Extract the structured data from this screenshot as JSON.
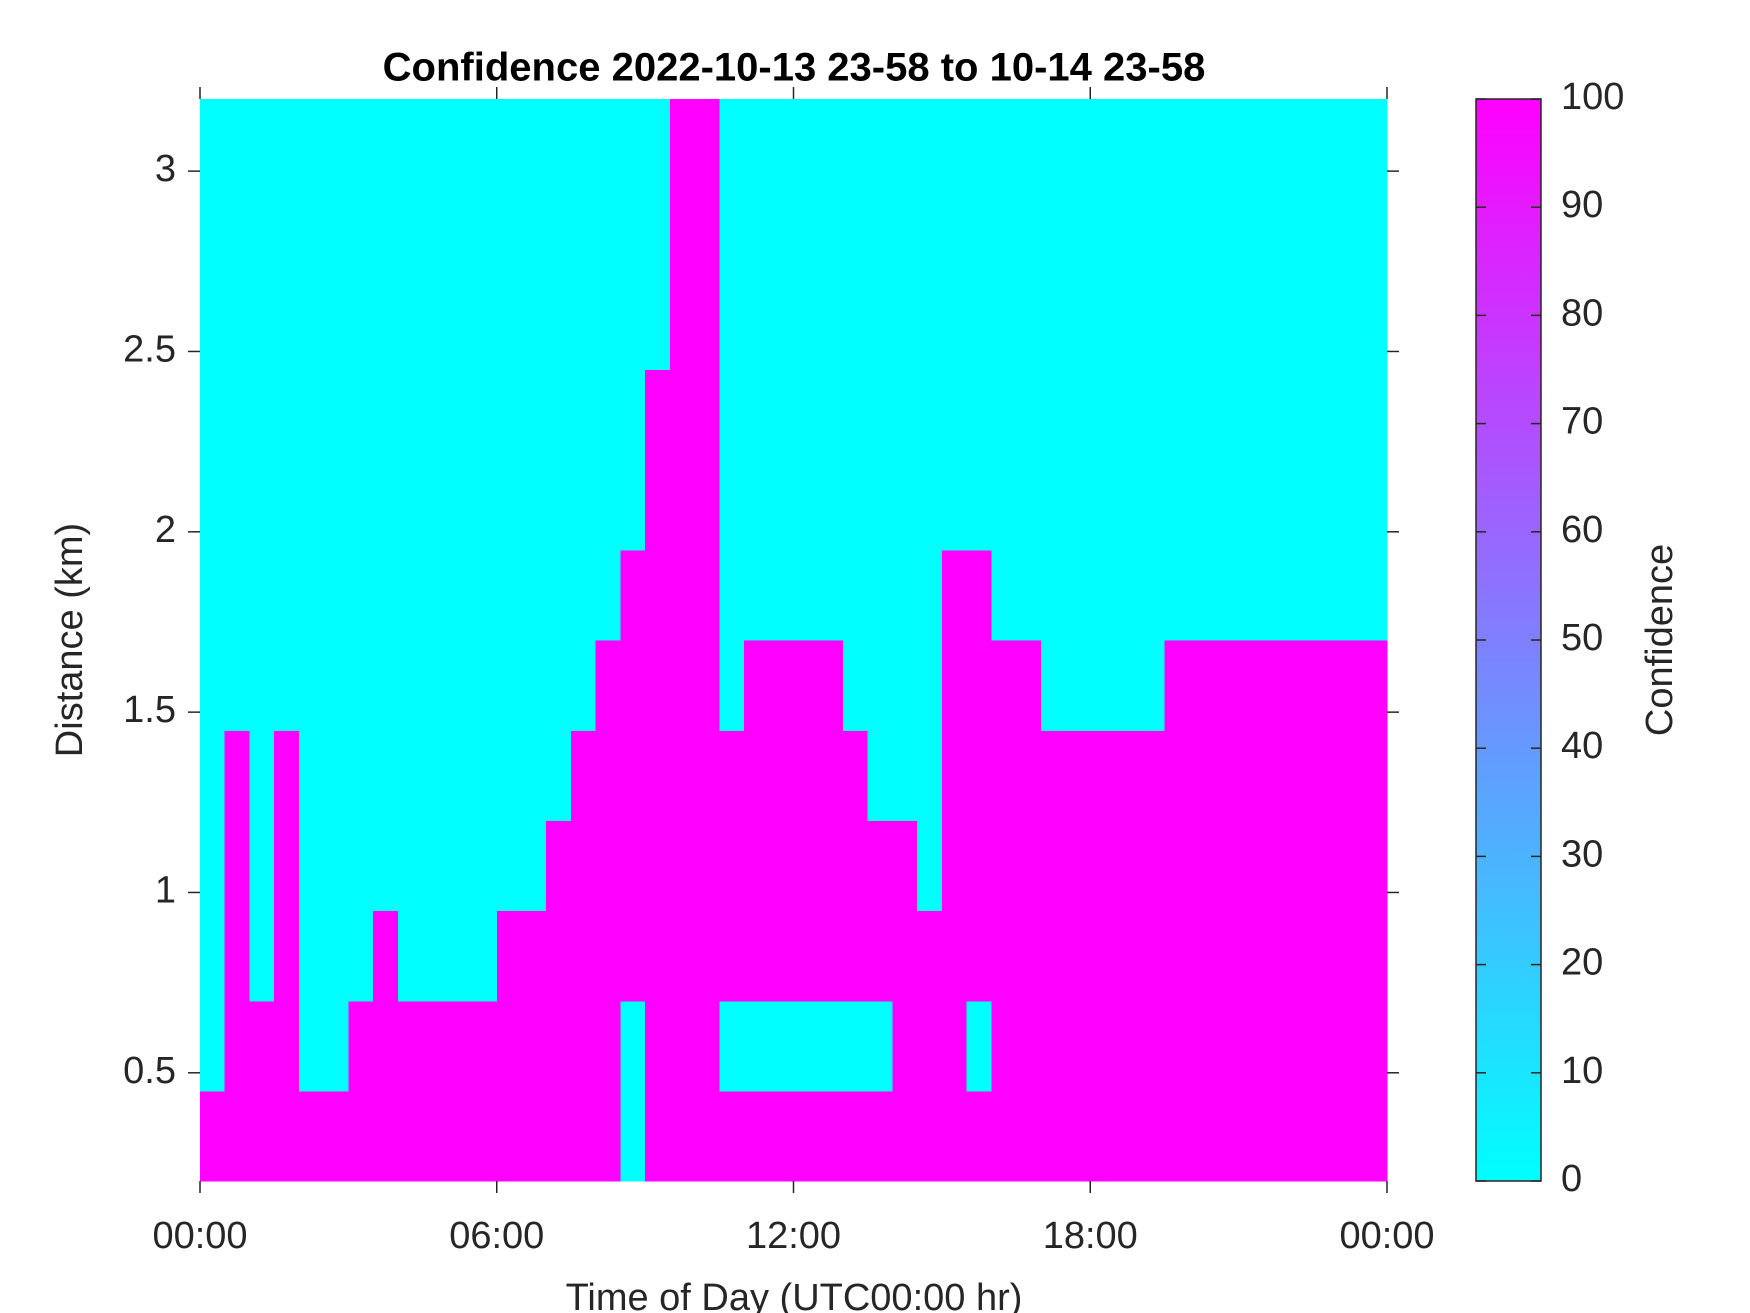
{
  "chart_data": {
    "type": "heatmap",
    "title": "Confidence 2022-10-13 23-58 to 10-14 23-58",
    "x_label": "Time of Day (UTC00:00 hr)",
    "y_label": "Distance (km)",
    "colorbar_label": "Confidence",
    "xlim": [
      0,
      24
    ],
    "xticks": [
      {
        "value": 0,
        "label": "00:00"
      },
      {
        "value": 6,
        "label": "06:00"
      },
      {
        "value": 12,
        "label": "12:00"
      },
      {
        "value": 18,
        "label": "18:00"
      },
      {
        "value": 24,
        "label": "00:00"
      }
    ],
    "ylim": [
      0.2,
      3.2
    ],
    "yticks": [
      0.5,
      1,
      1.5,
      2,
      2.5,
      3
    ],
    "clim": [
      0,
      100
    ],
    "cticks": [
      0,
      10,
      20,
      30,
      40,
      50,
      60,
      70,
      80,
      90,
      100
    ],
    "colormap": [
      "#00ffff",
      "#ff00ff"
    ],
    "xbins": [
      0,
      0.5,
      1,
      1.5,
      2,
      2.5,
      3,
      3.5,
      4,
      4.5,
      5,
      5.5,
      6,
      6.5,
      7,
      7.5,
      8,
      8.5,
      9,
      9.5,
      10,
      10.5,
      11,
      11.5,
      12,
      12.5,
      13,
      13.5,
      14,
      14.5,
      15,
      15.5,
      16,
      16.5,
      17,
      17.5,
      18,
      18.5,
      19,
      19.5,
      20,
      20.5,
      21,
      21.5,
      22,
      22.5,
      23,
      23.5,
      24
    ],
    "ybins": [
      0.2,
      0.45,
      0.7,
      0.95,
      1.2,
      1.45,
      1.7,
      1.95,
      2.2,
      2.45,
      2.7,
      2.95,
      3.2
    ],
    "z": [
      [
        100,
        100,
        100,
        100,
        100,
        100,
        100,
        100,
        100,
        100,
        100,
        100,
        100,
        100,
        100,
        100,
        100,
        0,
        100,
        100,
        100,
        100,
        100,
        100,
        100,
        100,
        100,
        100,
        100,
        100,
        100,
        100,
        100,
        100,
        100,
        100,
        100,
        100,
        100,
        100,
        100,
        100,
        100,
        100,
        100,
        100,
        100,
        100
      ],
      [
        0,
        100,
        100,
        100,
        0,
        0,
        100,
        100,
        100,
        100,
        100,
        100,
        100,
        100,
        100,
        100,
        100,
        0,
        100,
        100,
        100,
        0,
        0,
        0,
        0,
        0,
        0,
        0,
        100,
        100,
        100,
        0,
        100,
        100,
        100,
        100,
        100,
        100,
        100,
        100,
        100,
        100,
        100,
        100,
        100,
        100,
        100,
        100
      ],
      [
        0,
        100,
        0,
        100,
        0,
        0,
        0,
        100,
        0,
        0,
        0,
        0,
        100,
        100,
        100,
        100,
        100,
        100,
        100,
        100,
        100,
        100,
        100,
        100,
        100,
        100,
        100,
        100,
        100,
        100,
        100,
        100,
        100,
        100,
        100,
        100,
        100,
        100,
        100,
        100,
        100,
        100,
        100,
        100,
        100,
        100,
        100,
        100
      ],
      [
        0,
        100,
        0,
        100,
        0,
        0,
        0,
        0,
        0,
        0,
        0,
        0,
        0,
        0,
        100,
        100,
        100,
        100,
        100,
        100,
        100,
        100,
        100,
        100,
        100,
        100,
        100,
        100,
        100,
        0,
        100,
        100,
        100,
        100,
        100,
        100,
        100,
        100,
        100,
        100,
        100,
        100,
        100,
        100,
        100,
        100,
        100,
        100
      ],
      [
        0,
        100,
        0,
        100,
        0,
        0,
        0,
        0,
        0,
        0,
        0,
        0,
        0,
        0,
        0,
        100,
        100,
        100,
        100,
        100,
        100,
        100,
        100,
        100,
        100,
        100,
        100,
        0,
        0,
        0,
        100,
        100,
        100,
        100,
        100,
        100,
        100,
        100,
        100,
        100,
        100,
        100,
        100,
        100,
        100,
        100,
        100,
        100
      ],
      [
        0,
        0,
        0,
        0,
        0,
        0,
        0,
        0,
        0,
        0,
        0,
        0,
        0,
        0,
        0,
        0,
        100,
        100,
        100,
        100,
        100,
        0,
        100,
        100,
        100,
        100,
        0,
        0,
        0,
        0,
        100,
        100,
        100,
        100,
        0,
        0,
        0,
        0,
        0,
        100,
        100,
        100,
        100,
        100,
        100,
        100,
        100,
        100
      ],
      [
        0,
        0,
        0,
        0,
        0,
        0,
        0,
        0,
        0,
        0,
        0,
        0,
        0,
        0,
        0,
        0,
        0,
        100,
        100,
        100,
        100,
        0,
        0,
        0,
        0,
        0,
        0,
        0,
        0,
        0,
        100,
        100,
        0,
        0,
        0,
        0,
        0,
        0,
        0,
        0,
        0,
        0,
        0,
        0,
        0,
        0,
        0,
        0
      ],
      [
        0,
        0,
        0,
        0,
        0,
        0,
        0,
        0,
        0,
        0,
        0,
        0,
        0,
        0,
        0,
        0,
        0,
        0,
        100,
        100,
        100,
        0,
        0,
        0,
        0,
        0,
        0,
        0,
        0,
        0,
        0,
        0,
        0,
        0,
        0,
        0,
        0,
        0,
        0,
        0,
        0,
        0,
        0,
        0,
        0,
        0,
        0,
        0
      ],
      [
        0,
        0,
        0,
        0,
        0,
        0,
        0,
        0,
        0,
        0,
        0,
        0,
        0,
        0,
        0,
        0,
        0,
        0,
        100,
        100,
        100,
        0,
        0,
        0,
        0,
        0,
        0,
        0,
        0,
        0,
        0,
        0,
        0,
        0,
        0,
        0,
        0,
        0,
        0,
        0,
        0,
        0,
        0,
        0,
        0,
        0,
        0,
        0
      ],
      [
        0,
        0,
        0,
        0,
        0,
        0,
        0,
        0,
        0,
        0,
        0,
        0,
        0,
        0,
        0,
        0,
        0,
        0,
        0,
        100,
        100,
        0,
        0,
        0,
        0,
        0,
        0,
        0,
        0,
        0,
        0,
        0,
        0,
        0,
        0,
        0,
        0,
        0,
        0,
        0,
        0,
        0,
        0,
        0,
        0,
        0,
        0,
        0
      ],
      [
        0,
        0,
        0,
        0,
        0,
        0,
        0,
        0,
        0,
        0,
        0,
        0,
        0,
        0,
        0,
        0,
        0,
        0,
        0,
        100,
        100,
        0,
        0,
        0,
        0,
        0,
        0,
        0,
        0,
        0,
        0,
        0,
        0,
        0,
        0,
        0,
        0,
        0,
        0,
        0,
        0,
        0,
        0,
        0,
        0,
        0,
        0,
        0
      ],
      [
        0,
        0,
        0,
        0,
        0,
        0,
        0,
        0,
        0,
        0,
        0,
        0,
        0,
        0,
        0,
        0,
        0,
        0,
        0,
        100,
        100,
        0,
        0,
        0,
        0,
        0,
        0,
        0,
        0,
        0,
        0,
        0,
        0,
        0,
        0,
        0,
        0,
        0,
        0,
        0,
        0,
        0,
        0,
        0,
        0,
        0,
        0,
        0
      ]
    ]
  }
}
